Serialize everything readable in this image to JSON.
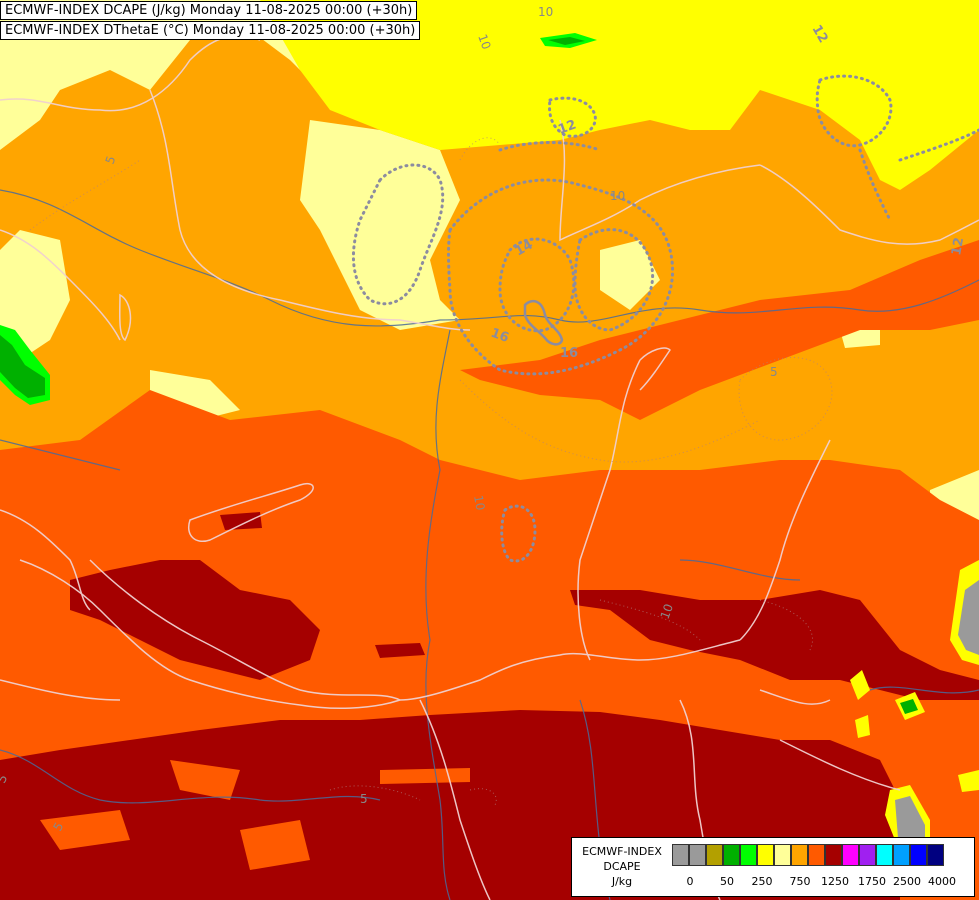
{
  "titles": [
    "ECMWF-INDEX DCAPE (J/kg) Monday 11-08-2025 00:00 (+30h)",
    "ECMWF-INDEX DThetaE (°C) Monday 11-08-2025 00:00 (+30h)"
  ],
  "legend": {
    "title_lines": [
      "ECMWF-INDEX",
      "DCAPE",
      "J/kg"
    ],
    "colors": [
      "#9a9a9a",
      "#9a9a9a",
      "#b3a000",
      "#00b000",
      "#00ff00",
      "#ffff00",
      "#ffff99",
      "#ffa500",
      "#ff5a00",
      "#a50000",
      "#ff00ff",
      "#a020f0",
      "#00ffff",
      "#00a0ff",
      "#0000ff",
      "#000080"
    ],
    "ticks": [
      "0",
      "50",
      "250",
      "750",
      "1250",
      "1750",
      "2500",
      "4000"
    ]
  },
  "contour_labels": [
    "10",
    "10",
    "12",
    "12",
    "5",
    "14",
    "16",
    "5",
    "10",
    "10",
    "5",
    "5",
    "5",
    "10",
    "16",
    "12",
    "16"
  ],
  "palette": {
    "light_yellow": "#ffff99",
    "yellow": "#ffff00",
    "orange": "#ffa500",
    "red_orange": "#ff5a00",
    "dark_red": "#a50000",
    "green": "#00b000",
    "bright_green": "#00ff00",
    "grey": "#9a9a9a"
  }
}
